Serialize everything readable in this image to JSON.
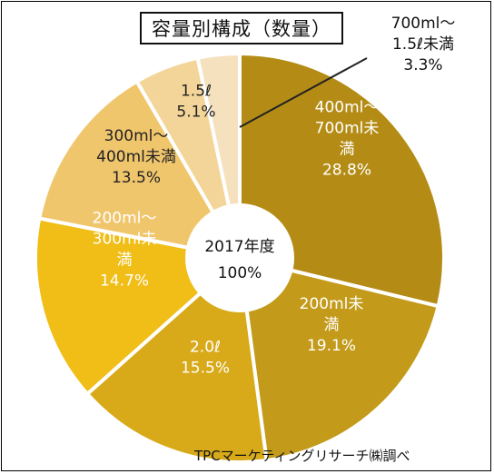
{
  "chart_data": {
    "type": "pie",
    "variant": "donut",
    "title": "容量別構成（数量）",
    "center_label": [
      "2017年度",
      "100%"
    ],
    "source": "TPCマーケティングリサーチ㈱調べ",
    "slices": [
      {
        "label": [
          "400ml～",
          "700ml未",
          "満",
          "28.8%"
        ],
        "value": 28.8,
        "color": "#b48c15"
      },
      {
        "label": [
          "200ml未",
          "満",
          "19.1%"
        ],
        "value": 19.1,
        "color": "#c39a19"
      },
      {
        "label": [
          "2.0ℓ",
          "15.5%"
        ],
        "value": 15.5,
        "color": "#d8aa1a"
      },
      {
        "label": [
          "200ml～",
          "300ml未",
          "満",
          "14.7%"
        ],
        "value": 14.7,
        "color": "#f0be16"
      },
      {
        "label": [
          "300ml～",
          "400ml未満",
          "13.5%"
        ],
        "value": 13.5,
        "color": "#f0c66d"
      },
      {
        "label": [
          "1.5ℓ",
          "5.1%"
        ],
        "value": 5.1,
        "color": "#f4d599"
      },
      {
        "label": [
          "700ml～",
          "1.5ℓ未満",
          "3.3%"
        ],
        "value": 3.3,
        "color": "#f6e1bf"
      }
    ]
  }
}
